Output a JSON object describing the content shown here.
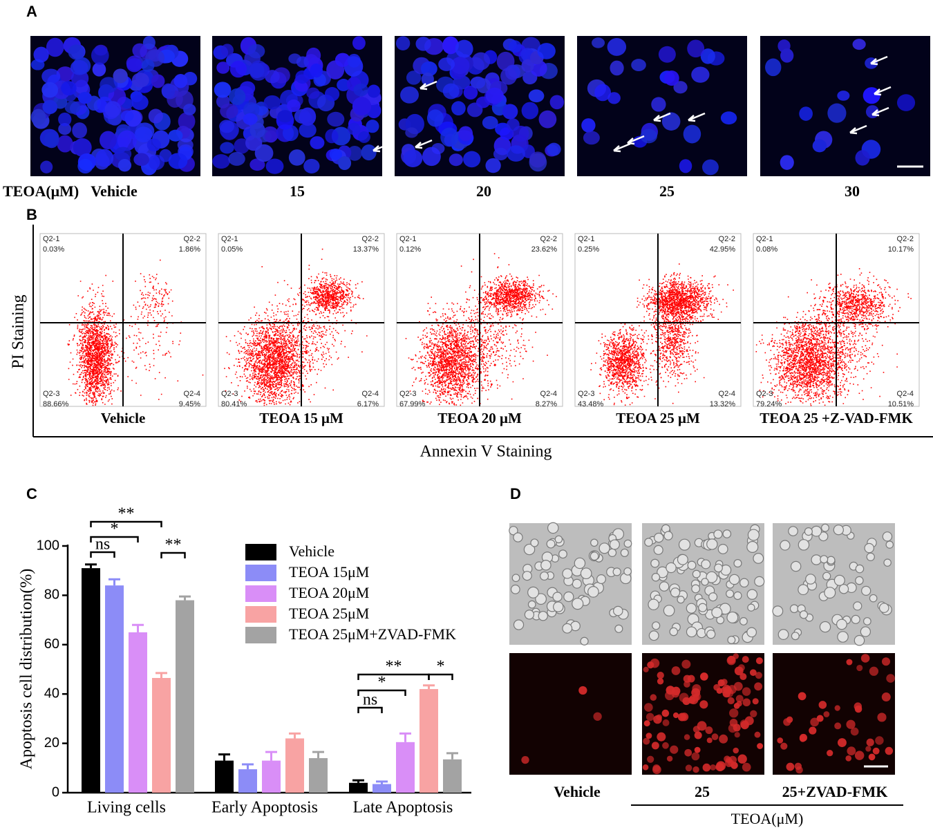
{
  "panels": {
    "A": {
      "letter": "A",
      "row_label": "TEOA(μM)",
      "labels": [
        "Vehicle",
        "15",
        "20",
        "25",
        "30"
      ]
    },
    "B": {
      "letter": "B",
      "y_label": "PI Staining",
      "x_label": "Annexin V Staining",
      "plots": [
        {
          "label": "Vehicle",
          "quadrants": [
            [
              "Q2-1",
              "0.03%"
            ],
            [
              "Q2-2",
              "1.86%"
            ],
            [
              "Q2-3",
              "88.66%"
            ],
            [
              "Q2-4",
              "9.45%"
            ]
          ]
        },
        {
          "label": "TEOA 15 μM",
          "quadrants": [
            [
              "Q2-1",
              "0.05%"
            ],
            [
              "Q2-2",
              "13.37%"
            ],
            [
              "Q2-3",
              "80.41%"
            ],
            [
              "Q2-4",
              "6.17%"
            ]
          ]
        },
        {
          "label": "TEOA 20 μM",
          "quadrants": [
            [
              "Q2-1",
              "0.12%"
            ],
            [
              "Q2-2",
              "23.62%"
            ],
            [
              "Q2-3",
              "67.99%"
            ],
            [
              "Q2-4",
              "8.27%"
            ]
          ]
        },
        {
          "label": "TEOA 25 μM",
          "quadrants": [
            [
              "Q2-1",
              "0.25%"
            ],
            [
              "Q2-2",
              "42.95%"
            ],
            [
              "Q2-3",
              "43.48%"
            ],
            [
              "Q2-4",
              "13.32%"
            ]
          ]
        },
        {
          "label": "TEOA 25 +Z-VAD-FMK",
          "quadrants": [
            [
              "Q2-1",
              "0.08%"
            ],
            [
              "Q2-2",
              "10.17%"
            ],
            [
              "Q2-3",
              "79.24%"
            ],
            [
              "Q2-4",
              "10.51%"
            ]
          ]
        }
      ]
    },
    "C": {
      "letter": "C"
    },
    "D": {
      "letter": "D",
      "labels": [
        "Vehicle",
        "25",
        "25+ZVAD-FMK"
      ],
      "group_label": "TEOA(μM)"
    }
  },
  "chart_data": {
    "type": "bar",
    "y_label": "Apoptosis cell distribution(%)",
    "categories": [
      "Living cells",
      "Early Apoptosis",
      "Late Apoptosis"
    ],
    "series": [
      {
        "name": "Vehicle",
        "color": "#000000",
        "values": [
          91,
          13,
          4
        ],
        "errors": [
          1.5,
          2.5,
          1
        ]
      },
      {
        "name": "TEOA 15μM",
        "color": "#8c8cf7",
        "values": [
          84,
          9.5,
          3.5
        ],
        "errors": [
          2.5,
          2,
          1
        ]
      },
      {
        "name": "TEOA 20μM",
        "color": "#d98ef7",
        "values": [
          65,
          13,
          20.5
        ],
        "errors": [
          3,
          3.5,
          3.5
        ]
      },
      {
        "name": "TEOA 25μM",
        "color": "#f8a3a3",
        "values": [
          46.5,
          22,
          42
        ],
        "errors": [
          2,
          2,
          1.5
        ]
      },
      {
        "name": "TEOA 25μM+ZVAD-FMK",
        "color": "#a3a3a3",
        "values": [
          78,
          14,
          13.5
        ],
        "errors": [
          1.5,
          2.5,
          2.5
        ]
      }
    ],
    "ylim": [
      0,
      100
    ],
    "yticks": [
      0,
      20,
      40,
      60,
      80,
      100
    ],
    "annotations": [
      "**",
      "*",
      "ns",
      "**",
      "**",
      "*",
      "ns",
      "*"
    ]
  }
}
